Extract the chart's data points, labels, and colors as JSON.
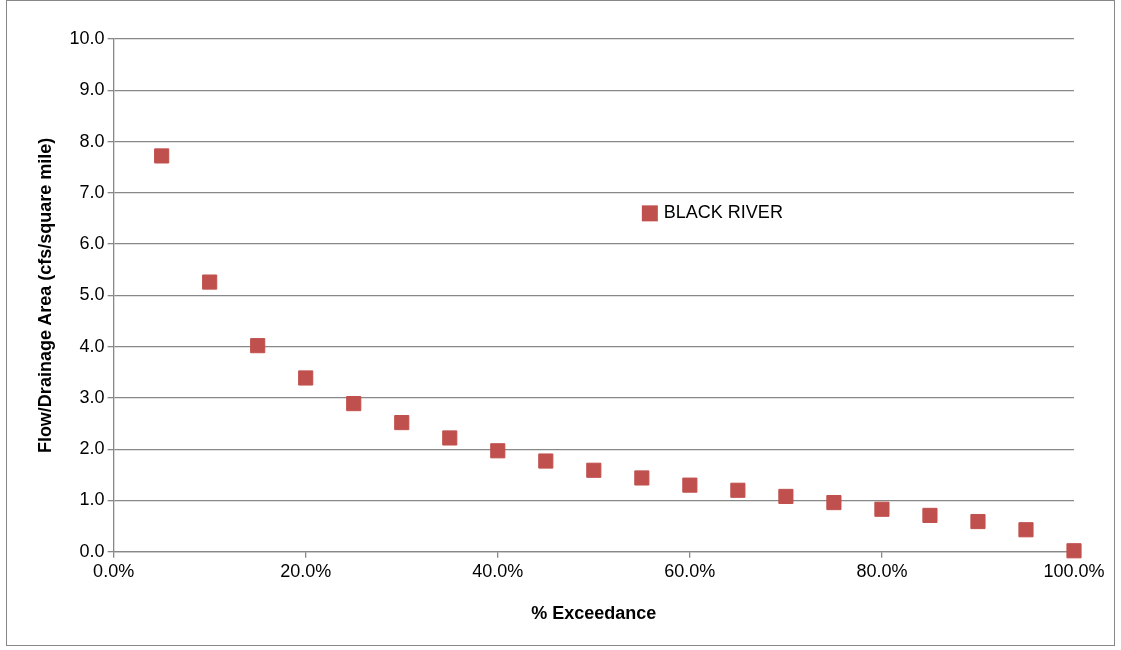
{
  "chart_data": {
    "type": "scatter",
    "xlabel": "% Exceedance",
    "ylabel": "Flow/Drainage Area (cfs/square mile)",
    "x": [
      5,
      10,
      15,
      20,
      25,
      30,
      35,
      40,
      45,
      50,
      55,
      60,
      65,
      70,
      75,
      80,
      85,
      90,
      95,
      100
    ],
    "series": [
      {
        "name": "BLACK RIVER",
        "color": "#c0504d",
        "values": [
          7.72,
          5.26,
          4.02,
          3.39,
          2.89,
          2.52,
          2.22,
          1.97,
          1.77,
          1.59,
          1.44,
          1.3,
          1.2,
          1.08,
          0.96,
          0.83,
          0.71,
          0.59,
          0.43,
          0.02
        ]
      }
    ],
    "xlim": [
      0,
      100
    ],
    "xticks": [
      {
        "value": 0,
        "label": "0.0%"
      },
      {
        "value": 20,
        "label": "20.0%"
      },
      {
        "value": 40,
        "label": "40.0%"
      },
      {
        "value": 60,
        "label": "60.0%"
      },
      {
        "value": 80,
        "label": "80.0%"
      },
      {
        "value": 100,
        "label": "100.0%"
      }
    ],
    "ylim": [
      0,
      10
    ],
    "yticks": [
      {
        "value": 0,
        "label": "0.0"
      },
      {
        "value": 1,
        "label": "1.0"
      },
      {
        "value": 2,
        "label": "2.0"
      },
      {
        "value": 3,
        "label": "3.0"
      },
      {
        "value": 4,
        "label": "4.0"
      },
      {
        "value": 5,
        "label": "5.0"
      },
      {
        "value": 6,
        "label": "6.0"
      },
      {
        "value": 7,
        "label": "7.0"
      },
      {
        "value": 8,
        "label": "8.0"
      },
      {
        "value": 9,
        "label": "9.0"
      },
      {
        "value": 10,
        "label": "10.0"
      }
    ],
    "grid": "y",
    "legend": "top right",
    "marker": "square"
  }
}
